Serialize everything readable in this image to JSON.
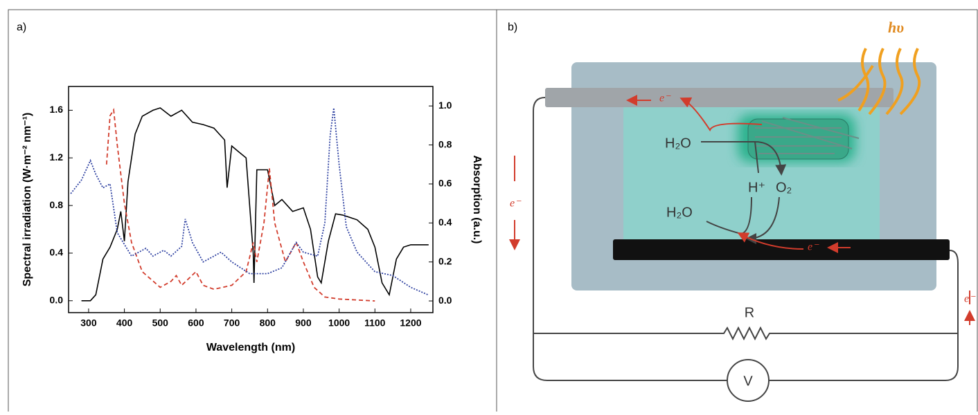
{
  "chart_data": {
    "type": "line",
    "panel_label": "a)",
    "x_label": "Wavelength (nm)",
    "y_label": "Spectral irradiation (W·m⁻² nm⁻¹)",
    "y2_label": "Absorption (a.u.)",
    "xlim": [
      244,
      1262
    ],
    "xticks": [
      300,
      400,
      500,
      600,
      700,
      800,
      900,
      1000,
      1100,
      1200
    ],
    "ylim": [
      -0.1,
      1.8
    ],
    "yticks": [
      {
        "value": 0,
        "label": "0.0"
      },
      {
        "value": 0.4,
        "label": "0.4"
      },
      {
        "value": 0.8,
        "label": "0.8"
      },
      {
        "value": 1.2,
        "label": "1.2"
      },
      {
        "value": 1.6,
        "label": "1.6"
      }
    ],
    "y2lim": [
      -0.06,
      1.1
    ],
    "y2ticks": [
      {
        "value": 0,
        "label": "0.0"
      },
      {
        "value": 0.2,
        "label": "0.2"
      },
      {
        "value": 0.4,
        "label": "0.4"
      },
      {
        "value": 0.6,
        "label": "0.6"
      },
      {
        "value": 0.8,
        "label": "0.8"
      },
      {
        "value": 1,
        "label": "1.0"
      }
    ],
    "series": [
      {
        "color": "#000000",
        "style": "solid",
        "x": [
          280,
          305,
          320,
          340,
          360,
          380,
          390,
          400,
          410,
          430,
          450,
          480,
          500,
          530,
          560,
          590,
          620,
          650,
          680,
          687,
          700,
          720,
          740,
          760,
          762,
          770,
          800,
          820,
          840,
          870,
          900,
          920,
          940,
          950,
          970,
          990,
          1010,
          1050,
          1080,
          1100,
          1120,
          1140,
          1160,
          1180,
          1200,
          1250
        ],
        "values": [
          0,
          0,
          0.05,
          0.35,
          0.45,
          0.6,
          0.75,
          0.5,
          1.0,
          1.4,
          1.55,
          1.6,
          1.62,
          1.55,
          1.6,
          1.5,
          1.48,
          1.45,
          1.35,
          0.95,
          1.3,
          1.25,
          1.2,
          0.4,
          0.15,
          1.1,
          1.1,
          0.8,
          0.85,
          0.75,
          0.78,
          0.6,
          0.2,
          0.15,
          0.5,
          0.73,
          0.72,
          0.68,
          0.6,
          0.45,
          0.15,
          0.05,
          0.35,
          0.45,
          0.47,
          0.47
        ]
      },
      {
        "color": "#d23c2c",
        "style": "dashed",
        "axis": "y2",
        "x": [
          350,
          360,
          370,
          380,
          400,
          420,
          450,
          500,
          530,
          545,
          560,
          600,
          620,
          650,
          700,
          740,
          760,
          770,
          790,
          805,
          820,
          850,
          880,
          900,
          930,
          960,
          1000,
          1100
        ],
        "values": [
          0.7,
          0.95,
          0.98,
          0.8,
          0.5,
          0.3,
          0.15,
          0.07,
          0.1,
          0.13,
          0.08,
          0.15,
          0.08,
          0.06,
          0.08,
          0.15,
          0.3,
          0.2,
          0.4,
          0.68,
          0.4,
          0.2,
          0.3,
          0.2,
          0.07,
          0.02,
          0.01,
          0
        ]
      },
      {
        "color": "#2c3fa0",
        "style": "dotted",
        "axis": "y2",
        "x": [
          250,
          280,
          305,
          320,
          340,
          360,
          380,
          420,
          460,
          480,
          510,
          530,
          560,
          570,
          590,
          620,
          650,
          670,
          700,
          750,
          800,
          840,
          880,
          900,
          940,
          960,
          975,
          985,
          1000,
          1020,
          1050,
          1100,
          1150,
          1200,
          1250
        ],
        "values": [
          0.55,
          0.62,
          0.72,
          0.65,
          0.58,
          0.6,
          0.35,
          0.23,
          0.27,
          0.23,
          0.26,
          0.23,
          0.28,
          0.42,
          0.3,
          0.2,
          0.23,
          0.25,
          0.2,
          0.14,
          0.14,
          0.17,
          0.3,
          0.25,
          0.23,
          0.4,
          0.85,
          0.99,
          0.7,
          0.38,
          0.25,
          0.15,
          0.13,
          0.07,
          0.03
        ]
      }
    ]
  },
  "diagram": {
    "panel_label": "b)",
    "light": "hυ",
    "labels": {
      "e_top": "e⁻",
      "h2o_in": "H₂O",
      "h_plus": "H⁺",
      "o2": "O₂",
      "h2o_out": "H₂O",
      "e_bottom": "e⁻",
      "e_left": "e⁻",
      "e_right": "e⁻",
      "resistor": "R",
      "voltmeter": "V"
    }
  }
}
